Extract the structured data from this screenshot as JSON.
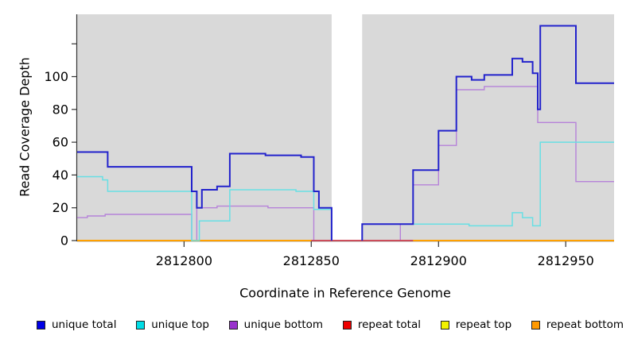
{
  "y_axis_title": "Read Coverage Depth",
  "x_axis_title": "Coordinate in Reference Genome",
  "legend": {
    "position": "bottom",
    "items": [
      {
        "label": "unique total",
        "color": "#0000e6"
      },
      {
        "label": "unique top",
        "color": "#00dde6"
      },
      {
        "label": "unique bottom",
        "color": "#9932cc"
      },
      {
        "label": "repeat total",
        "color": "#ee0000"
      },
      {
        "label": "repeat top",
        "color": "#f2f200"
      },
      {
        "label": "repeat bottom",
        "color": "#ff9900"
      }
    ]
  },
  "chart_data": {
    "type": "line",
    "subtype": "step",
    "title": "",
    "xlabel": "Coordinate in Reference Genome",
    "ylabel": "Read Coverage Depth",
    "xlim": [
      2812758,
      2812969
    ],
    "ylim": [
      0,
      138
    ],
    "grid": false,
    "panel_background": "#d9d9d9",
    "missing_data_band": {
      "x_start": 2812858,
      "x_end": 2812870
    },
    "x_ticks": [
      {
        "value": 2812800,
        "label": "2812800"
      },
      {
        "value": 2812850,
        "label": "2812850"
      },
      {
        "value": 2812900,
        "label": "2812900"
      },
      {
        "value": 2812950,
        "label": "2812950"
      }
    ],
    "y_ticks": [
      {
        "value": 0,
        "label": "0"
      },
      {
        "value": 20,
        "label": "20"
      },
      {
        "value": 40,
        "label": "40"
      },
      {
        "value": 60,
        "label": "60"
      },
      {
        "value": 80,
        "label": "80"
      },
      {
        "value": 100,
        "label": "100"
      },
      {
        "value": 120,
        "label": ""
      }
    ],
    "series": [
      {
        "name": "repeat top",
        "color": "#e8e800",
        "width": 1.4,
        "segments": [
          {
            "points": [
              [
                2812758,
                0
              ]
            ],
            "end": 2812969
          }
        ]
      },
      {
        "name": "unique bottom",
        "color": "#b682d9",
        "width": 1.4,
        "segments": [
          {
            "points": [
              [
                2812758,
                14
              ],
              [
                2812762,
                15
              ],
              [
                2812769,
                16
              ],
              [
                2812803,
                0
              ],
              [
                2812805,
                20
              ],
              [
                2812813,
                21
              ],
              [
                2812833,
                20
              ],
              [
                2812851,
                0
              ]
            ],
            "end": 2812851
          },
          {
            "points": [
              [
                2812885,
                0
              ],
              [
                2812885,
                10
              ],
              [
                2812890,
                34
              ],
              [
                2812900,
                58
              ],
              [
                2812907,
                92
              ],
              [
                2812918,
                94
              ],
              [
                2812939,
                72
              ],
              [
                2812954,
                36
              ]
            ],
            "end": 2812969
          }
        ]
      },
      {
        "name": "repeat total",
        "color": "#cc3c5c",
        "width": 1.7,
        "segments": [
          {
            "points": [
              [
                2812758,
                0
              ]
            ],
            "end": 2812969
          }
        ]
      },
      {
        "name": "repeat bottom",
        "color": "#ffa000",
        "width": 2,
        "segments": [
          {
            "points": [
              [
                2812758,
                0
              ]
            ],
            "end": 2812850
          },
          {
            "points": [
              [
                2812890,
                0
              ]
            ],
            "end": 2812969
          }
        ]
      },
      {
        "name": "unique top",
        "color": "#68dfe4",
        "width": 1.5,
        "segments": [
          {
            "points": [
              [
                2812758,
                39
              ],
              [
                2812768,
                37
              ],
              [
                2812770,
                30
              ],
              [
                2812803,
                0
              ],
              [
                2812806,
                12
              ],
              [
                2812818,
                31
              ],
              [
                2812844,
                30
              ],
              [
                2812851,
                19
              ],
              [
                2812858,
                0
              ]
            ],
            "end": 2812858
          },
          {
            "points": [
              [
                2812870,
                0
              ],
              [
                2812870,
                10
              ],
              [
                2812912,
                9
              ],
              [
                2812929,
                17
              ],
              [
                2812933,
                14
              ],
              [
                2812937,
                9
              ],
              [
                2812940,
                60
              ]
            ],
            "end": 2812969
          }
        ]
      },
      {
        "name": "unique total",
        "color": "#2222cc",
        "width": 2,
        "segments": [
          {
            "points": [
              [
                2812758,
                54
              ],
              [
                2812770,
                45
              ],
              [
                2812803,
                30
              ],
              [
                2812805,
                20
              ],
              [
                2812807,
                31
              ],
              [
                2812813,
                33
              ],
              [
                2812818,
                53
              ],
              [
                2812832,
                52
              ],
              [
                2812846,
                51
              ],
              [
                2812851,
                30
              ],
              [
                2812853,
                20
              ],
              [
                2812858,
                0
              ]
            ],
            "end": 2812858
          },
          {
            "points": [
              [
                2812870,
                0
              ],
              [
                2812870,
                10
              ],
              [
                2812890,
                43
              ],
              [
                2812900,
                67
              ],
              [
                2812907,
                100
              ],
              [
                2812913,
                98
              ],
              [
                2812918,
                101
              ],
              [
                2812929,
                111
              ],
              [
                2812933,
                109
              ],
              [
                2812937,
                102
              ],
              [
                2812939,
                80
              ],
              [
                2812940,
                131
              ],
              [
                2812954,
                96
              ]
            ],
            "end": 2812969
          }
        ]
      }
    ]
  }
}
